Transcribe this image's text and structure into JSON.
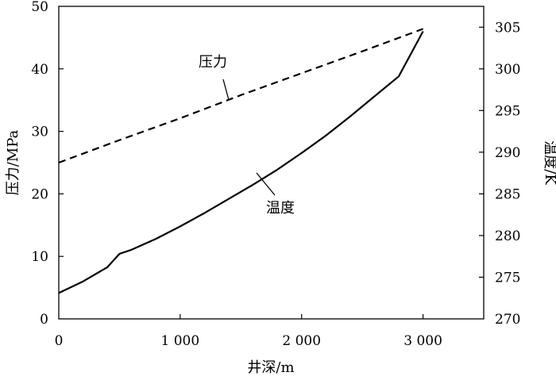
{
  "chart_data": {
    "type": "line",
    "xlabel": "井深/m",
    "ylabel_left": "压力/MPa",
    "ylabel_right": "温度/K",
    "xlim": [
      0,
      3500
    ],
    "ylim_left": [
      0,
      50
    ],
    "ylim_right": [
      270,
      307.5
    ],
    "x_ticks": [
      0,
      1000,
      2000,
      3000
    ],
    "x_tick_labels": [
      "0",
      "1 000",
      "2 000",
      "3 000"
    ],
    "y_left_ticks": [
      0,
      10,
      20,
      30,
      40,
      50
    ],
    "y_left_tick_labels": [
      "0",
      "10",
      "20",
      "30",
      "40",
      "50"
    ],
    "y_right_ticks": [
      270,
      275,
      280,
      285,
      290,
      295,
      300,
      305
    ],
    "y_right_tick_labels": [
      "270",
      "275",
      "280",
      "285",
      "290",
      "295",
      "300",
      "305"
    ],
    "grid": false,
    "legend": "none",
    "series": [
      {
        "name": "压力",
        "axis": "left",
        "style": "dashed",
        "x": [
          0,
          500,
          1000,
          1500,
          2000,
          2500,
          3000
        ],
        "values": [
          25.0,
          28.6,
          32.1,
          35.8,
          39.3,
          42.8,
          46.4
        ]
      },
      {
        "name": "温度",
        "axis": "right",
        "style": "solid",
        "x": [
          0,
          200,
          400,
          500,
          600,
          800,
          1000,
          1200,
          1400,
          1600,
          1800,
          2000,
          2200,
          2400,
          2600,
          2800,
          3000
        ],
        "values": [
          273.1,
          274.5,
          276.2,
          277.8,
          278.3,
          279.6,
          281.1,
          282.7,
          284.4,
          286.1,
          287.9,
          289.9,
          292.0,
          294.3,
          296.7,
          299.1,
          304.5
        ]
      }
    ],
    "annotations": [
      {
        "text": "压力",
        "series": 0
      },
      {
        "text": "温度",
        "series": 1
      }
    ]
  }
}
